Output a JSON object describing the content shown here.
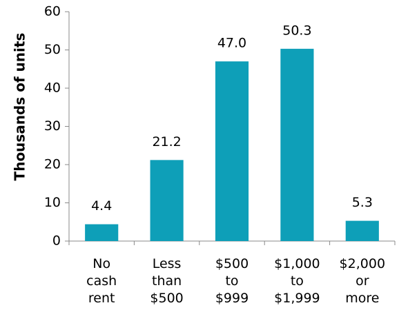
{
  "chart_data": {
    "type": "bar",
    "y_label": "Thousands of units",
    "categories": [
      "No cash rent",
      "Less than $500",
      "$500 to $999",
      "$1,000 to $1,999",
      "$2,000 or more"
    ],
    "values": [
      4.4,
      21.2,
      47.0,
      50.3,
      5.3
    ],
    "value_labels": [
      "4.4",
      "21.2",
      "47.0",
      "50.3",
      "5.3"
    ],
    "color": "#0e9fb8",
    "ylim": [
      0,
      60
    ],
    "yticks": [
      0,
      10,
      20,
      30,
      40,
      50,
      60
    ],
    "grid": false
  }
}
